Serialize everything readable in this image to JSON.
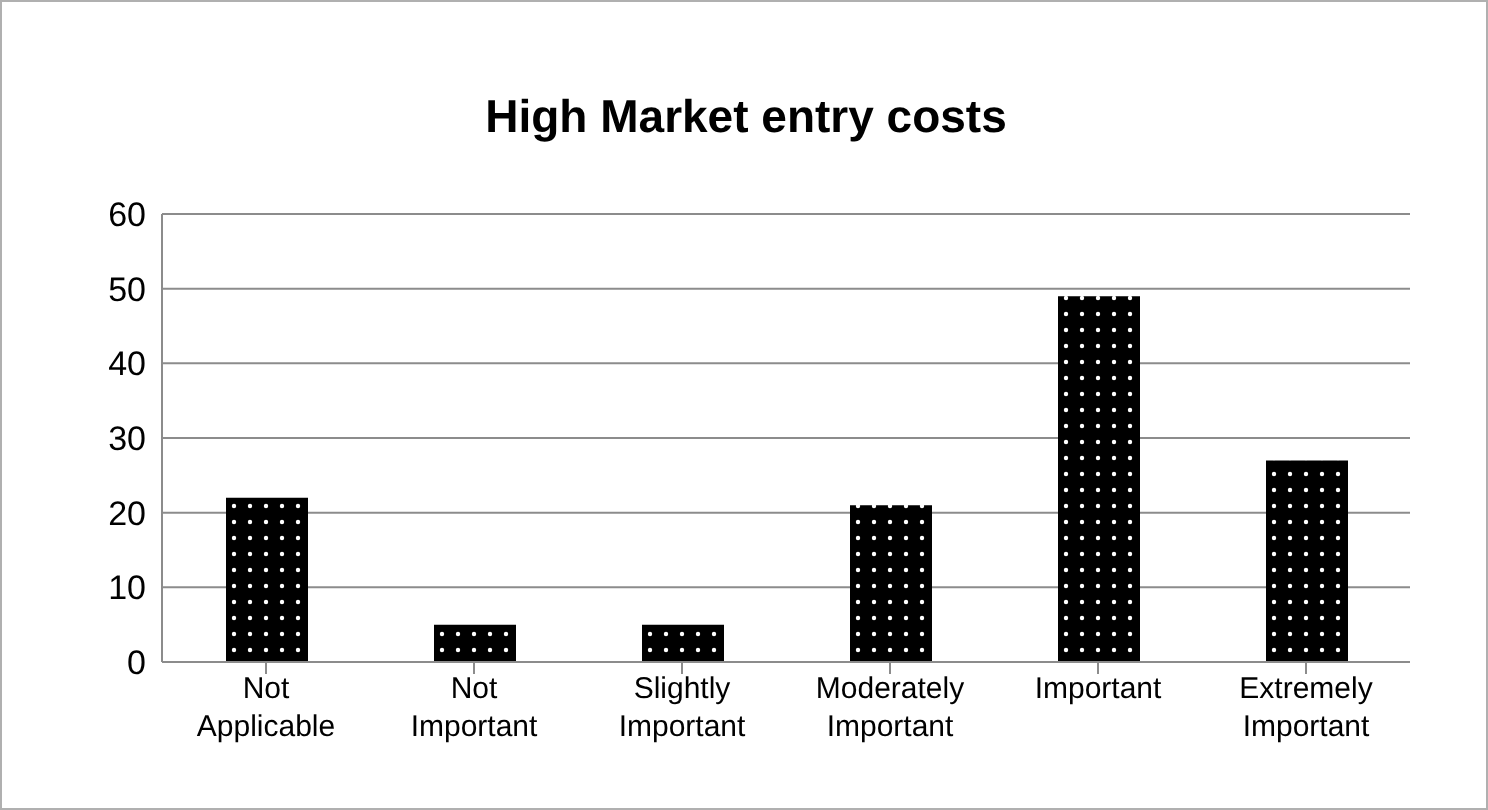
{
  "chart_data": {
    "type": "bar",
    "title": "High Market entry costs",
    "categories": [
      "Not Applicable",
      "Not Important",
      "Slightly Important",
      "Moderately Important",
      "Important",
      "Extremely Important"
    ],
    "values": [
      22,
      5,
      5,
      21,
      49,
      27
    ],
    "color": "#000000",
    "ylim": [
      0,
      60
    ],
    "yticks": [
      0,
      10,
      20,
      30,
      40,
      50,
      60
    ],
    "grid": "y",
    "legend": false
  }
}
